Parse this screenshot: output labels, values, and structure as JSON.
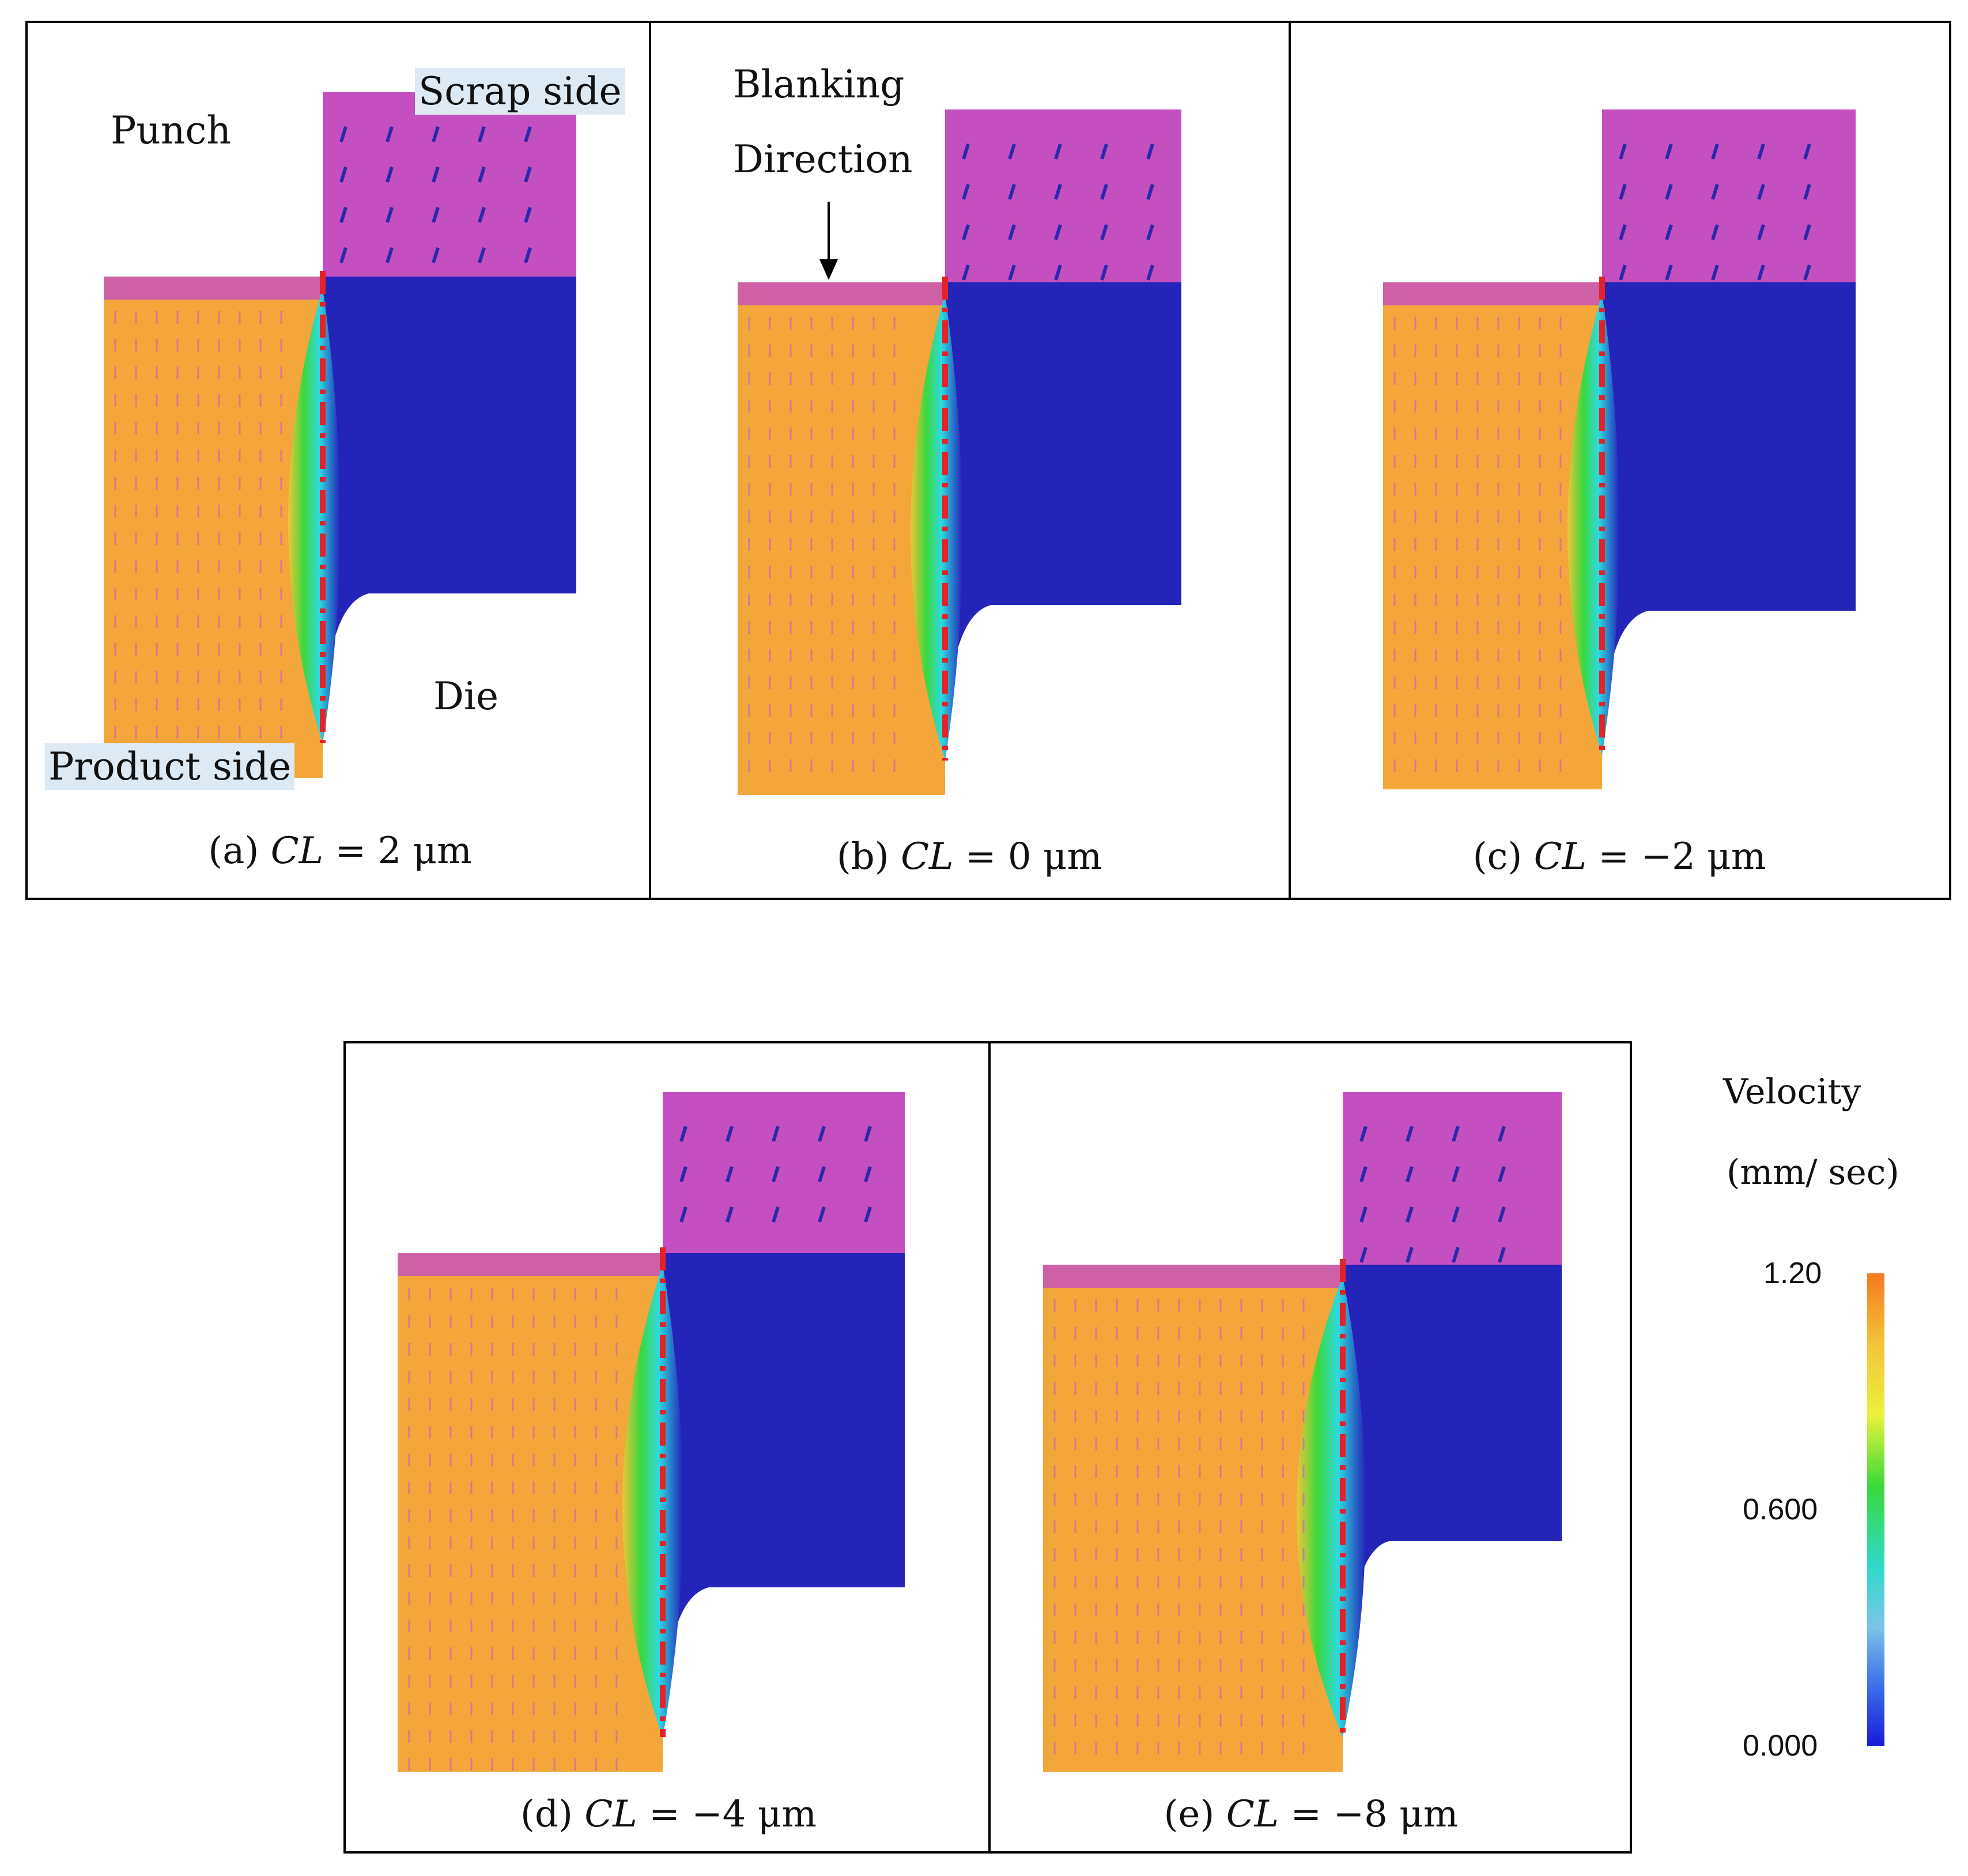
{
  "panels": [
    {
      "id": "a",
      "caption_prefix": "(a) ",
      "caption_var": "CL",
      "caption_value": " = 2 μm"
    },
    {
      "id": "b",
      "caption_prefix": "(b) ",
      "caption_var": "CL",
      "caption_value": " = 0 μm"
    },
    {
      "id": "c",
      "caption_prefix": "(c) ",
      "caption_var": "CL",
      "caption_value": " =  −2 μm"
    },
    {
      "id": "d",
      "caption_prefix": "(d) ",
      "caption_var": "CL",
      "caption_value": " =  −4 μm"
    },
    {
      "id": "e",
      "caption_prefix": "(e) ",
      "caption_var": "CL",
      "caption_value": " =  −8 μm"
    }
  ],
  "labels": {
    "punch": "Punch",
    "scrap_side": "Scrap side",
    "die": "Die",
    "product_side": "Product side",
    "blanking_line1": "Blanking",
    "blanking_line2": "Direction"
  },
  "legend": {
    "title_line1": "Velocity",
    "title_line2": "(mm/ sec)",
    "ticks": [
      "1.20",
      "0.600",
      "0.000"
    ],
    "max": 1.2,
    "min": 0.0
  },
  "colors": {
    "scrap_region": "#c44fc0",
    "scrap_arrows": "#2a2aa8",
    "shear_zone_blue": "#2424b8",
    "product_region": "#f3a63a",
    "product_arrows": "#c655c8",
    "crack_line": "#e3222a"
  }
}
